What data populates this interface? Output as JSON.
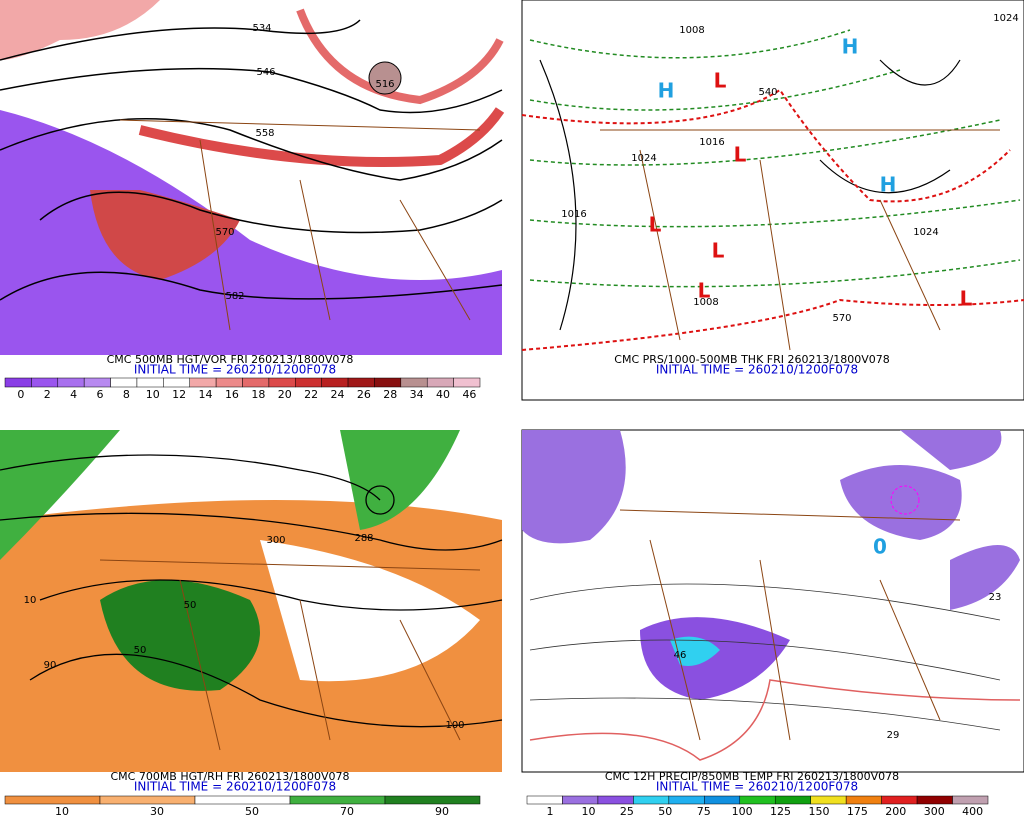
{
  "panels": [
    {
      "caption": "CMC 500MB HGT/VOR FRI 260213/1800V078",
      "initial_time": "INITIAL TIME = 260210/1200F078",
      "colorbar": {
        "labels": [
          0,
          2,
          4,
          6,
          8,
          10,
          12,
          14,
          16,
          18,
          20,
          22,
          24,
          26,
          28,
          34,
          40,
          46
        ],
        "colors": [
          "#8a3ee6",
          "#9a55ee",
          "#a870ee",
          "#b88af0",
          "#ffffff",
          "#ffffff",
          "#ffffff",
          "#f2a8a8",
          "#ec8a8a",
          "#e46a6a",
          "#dc4a4a",
          "#cc3030",
          "#b82020",
          "#a01818",
          "#881010",
          "#b89090",
          "#d8a8b8",
          "#f0c0d0"
        ]
      },
      "labels": [
        "534",
        "546",
        "516",
        "558",
        "570",
        "582"
      ]
    },
    {
      "caption": "CMC PRS/1000-500MB THK FRI 260213/1800V078",
      "initial_time": "INITIAL TIME = 260210/1200F078",
      "labels": [
        "1008",
        "1016",
        "1024",
        "1024",
        "1016",
        "540",
        "570",
        "1008",
        "1024",
        "H",
        "H",
        "H",
        "L",
        "L",
        "L",
        "L",
        "L",
        "L"
      ]
    },
    {
      "caption": "CMC 700MB HGT/RH FRI 260213/1800V078",
      "initial_time": "INITIAL TIME = 260210/1200F078",
      "colorbar": {
        "labels": [
          10,
          30,
          50,
          70,
          90
        ],
        "colors": [
          "#f09040",
          "#f8b070",
          "#ffffff",
          "#40b040",
          "#208020"
        ]
      },
      "labels": [
        "288",
        "300",
        "50",
        "10",
        "50",
        "90",
        "100"
      ]
    },
    {
      "caption": "CMC 12H PRECIP/850MB TEMP FRI 260213/1800V078",
      "initial_time": "INITIAL TIME = 260210/1200F078",
      "colorbar": {
        "labels": [
          1,
          10,
          25,
          50,
          75,
          100,
          125,
          150,
          175,
          200,
          300,
          400
        ],
        "colors": [
          "#ffffff",
          "#9a70e0",
          "#8a50e0",
          "#30d0f0",
          "#20b0f0",
          "#1090e0",
          "#20c020",
          "#10a010",
          "#f0e020",
          "#f08010",
          "#e02020",
          "#900000",
          "#c0a0b0"
        ]
      },
      "labels": [
        "29",
        "23",
        "46",
        "0"
      ]
    }
  ]
}
